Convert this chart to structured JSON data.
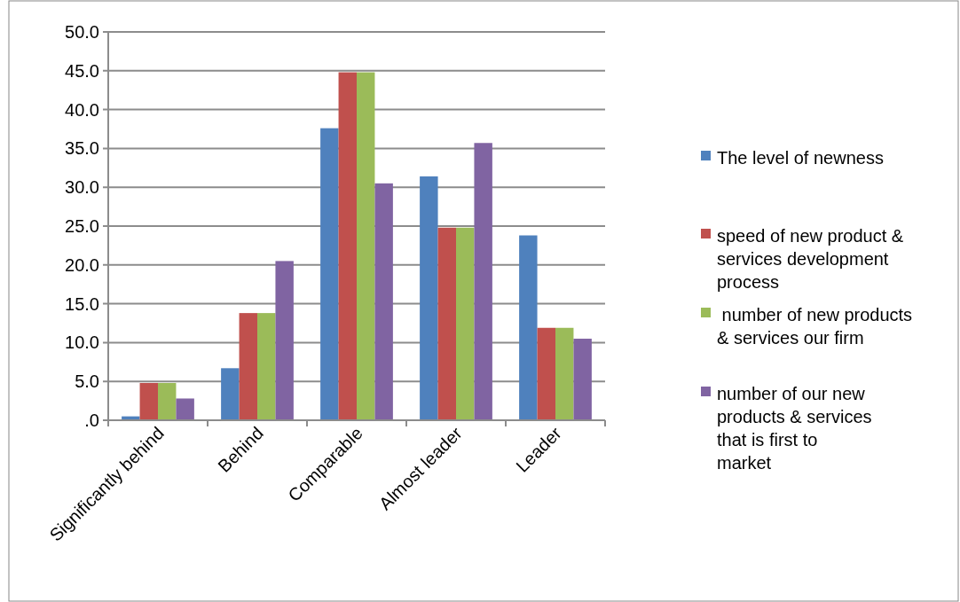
{
  "chart_data": {
    "type": "bar",
    "categories": [
      "Significantly behind",
      "Behind",
      "Comparable",
      "Almost leader",
      "Leader"
    ],
    "series": [
      {
        "name": "The level of newness",
        "color": "#4f81bd",
        "values": [
          0.5,
          6.7,
          37.6,
          31.4,
          23.8
        ]
      },
      {
        "name": "speed of new product & services development process",
        "color": "#c0504d",
        "values": [
          4.8,
          13.8,
          44.8,
          24.8,
          11.9
        ]
      },
      {
        "name": " number of new products & services our firm",
        "color": "#9bbb59",
        "values": [
          4.8,
          13.8,
          44.8,
          24.8,
          11.9
        ]
      },
      {
        "name": "number of our new products & services that is first to market",
        "color": "#8064a2",
        "values": [
          2.8,
          20.5,
          30.5,
          35.7,
          10.5
        ]
      }
    ],
    "ylim": [
      0,
      50
    ],
    "yticks": [
      {
        "value": 0,
        "label": ".0"
      },
      {
        "value": 5,
        "label": "5.0"
      },
      {
        "value": 10,
        "label": "10.0"
      },
      {
        "value": 15,
        "label": "15.0"
      },
      {
        "value": 20,
        "label": "20.0"
      },
      {
        "value": 25,
        "label": "25.0"
      },
      {
        "value": 30,
        "label": "30.0"
      },
      {
        "value": 35,
        "label": "35.0"
      },
      {
        "value": 40,
        "label": "40.0"
      },
      {
        "value": 45,
        "label": "45.0"
      },
      {
        "value": 50,
        "label": "50.0"
      }
    ],
    "grid": "y",
    "legend": "right"
  }
}
